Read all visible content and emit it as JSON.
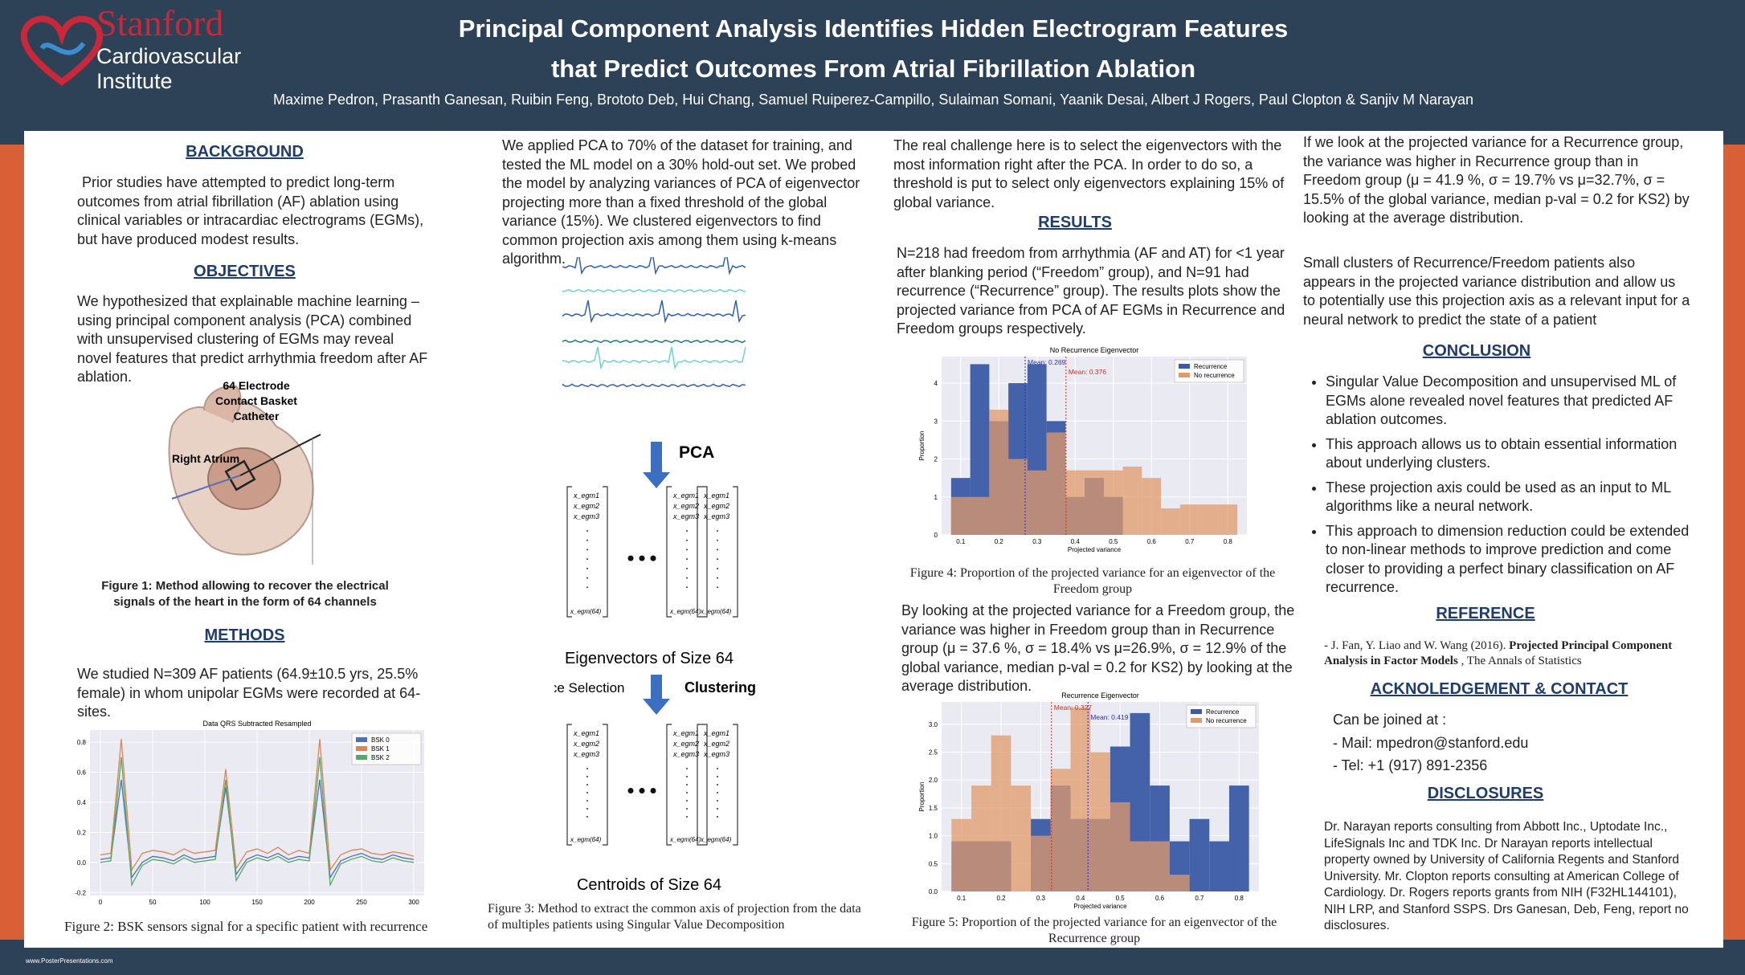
{
  "header": {
    "logo": [
      "Stanford",
      "Cardiovascular",
      "Institute"
    ],
    "title_line1": "Principal Component Analysis Identifies Hidden Electrogram Features",
    "title_line2": "that Predict Outcomes From Atrial Fibrillation Ablation",
    "authors": "Maxime Pedron, Prasanth Ganesan, Ruibin Feng, Brototo Deb, Hui Chang, Samuel Ruiperez-Campillo, Sulaiman Somani, Yaanik Desai, Albert J Rogers, Paul Clopton & Sanjiv M Narayan"
  },
  "column1": {
    "background_heading": "BACKGROUND",
    "background_text": "Prior studies have attempted to predict long-term outcomes from atrial fibrillation (AF) ablation using clinical variables or intracardiac electrograms (EGMs), but have produced modest results.",
    "objectives_heading": "OBJECTIVES",
    "objectives_text": "We hypothesized that explainable machine learning – using principal component analysis (PCA) combined with unsupervised clustering of EGMs may reveal novel features that predict arrhythmia freedom after AF ablation.",
    "figure1": {
      "catheter_label": [
        "64 Electrode",
        "Contact Basket",
        "Catheter"
      ],
      "atrium_label": "Right Atrium",
      "caption": "Figure 1: Method allowing to recover the electrical signals of the heart in the form of 64 channels"
    },
    "methods_heading": "METHODS",
    "methods_text": "We studied N=309 AF patients (64.9±10.5 yrs, 25.5% female) in whom unipolar EGMs were recorded at 64-sites.",
    "figure2": {
      "chart_data": {
        "type": "line",
        "title": "Data QRS Subtracted Resampled",
        "x": [
          0,
          10,
          20,
          30,
          40,
          50,
          60,
          70,
          80,
          90,
          100,
          110,
          120,
          130,
          140,
          150,
          160,
          170,
          180,
          190,
          200,
          210,
          220,
          230,
          240,
          250,
          260,
          270,
          280,
          290,
          300
        ],
        "xlim": [
          -10,
          310
        ],
        "xticks": [
          0,
          50,
          100,
          150,
          200,
          250,
          300
        ],
        "ylim": [
          -0.22,
          0.88
        ],
        "yticks": [
          -0.2,
          {
            "value": 0,
            "label": "0.0"
          },
          0.2,
          0.4,
          0.6,
          0.8
        ],
        "grid": true,
        "legend": "upper right",
        "series": [
          {
            "name": "BSK 0",
            "color": "#4c72b0",
            "values": [
              0.02,
              0.03,
              0.55,
              -0.1,
              0.0,
              0.04,
              0.03,
              0.01,
              0.05,
              0.02,
              0.03,
              0.04,
              0.5,
              -0.08,
              0.02,
              0.05,
              0.03,
              0.06,
              0.02,
              0.04,
              0.03,
              0.55,
              -0.1,
              0.01,
              0.04,
              0.06,
              0.03,
              0.02,
              0.05,
              0.03,
              0.02
            ]
          },
          {
            "name": "BSK 1",
            "color": "#dd8452",
            "values": [
              0.05,
              0.06,
              0.82,
              -0.05,
              0.06,
              0.08,
              0.07,
              0.05,
              0.09,
              0.06,
              0.07,
              0.08,
              0.62,
              -0.04,
              0.07,
              0.09,
              0.06,
              0.1,
              0.05,
              0.08,
              0.06,
              0.82,
              -0.05,
              0.05,
              0.08,
              0.09,
              0.06,
              0.05,
              0.07,
              0.06,
              0.04
            ]
          },
          {
            "name": "BSK 2",
            "color": "#55a868",
            "values": [
              0.0,
              0.01,
              0.7,
              -0.15,
              -0.02,
              0.02,
              0.01,
              -0.01,
              0.03,
              0.0,
              0.01,
              0.02,
              0.55,
              -0.12,
              0.0,
              0.03,
              0.01,
              0.04,
              0.0,
              0.02,
              0.01,
              0.7,
              -0.15,
              -0.01,
              0.02,
              0.04,
              0.01,
              0.0,
              0.03,
              0.01,
              0.0
            ]
          }
        ]
      },
      "caption": "Figure 2: BSK sensors signal for a specific patient with recurrence"
    }
  },
  "column2": {
    "text": "We applied PCA to 70% of the dataset for training, and tested the ML model on a 30% hold-out set. We probed the model by analyzing variances of PCA of eigenvector projecting more than a fixed threshold of the global variance (15%). We clustered eigenvectors to find common projection axis among them using k-means algorithm.",
    "pca_label": "PCA",
    "matrix_entries": [
      "x_egm1",
      "x_egm2",
      "x_egm3",
      "x_egm(64)"
    ],
    "eigenvectors_label": "Eigenvectors of Size 64",
    "variance_label": "Variance Selection",
    "clustering_label": "Clustering",
    "centroids_label": "Centroids of Size 64",
    "caption": "Figure 3: Method to extract the common axis of projection from the data of multiples patients using Singular Value Decomposition"
  },
  "column3": {
    "text1": "The real challenge here is to select the eigenvectors with the most information right after the PCA. In order to do so, a threshold is put to select only eigenvectors explaining 15% of global variance.",
    "results_heading": "RESULTS",
    "results_text": "N=218 had freedom from arrhythmia (AF and AT) for <1 year after blanking period (“Freedom” group), and N=91 had recurrence (“Recurrence” group). The results plots show the projected variance from PCA of AF EGMs in Recurrence and Freedom groups respectively.",
    "figure4": {
      "chart_data": {
        "type": "histogram",
        "title": "No Recurrence Eigenvector",
        "x_label": "Projected variance",
        "y_label": "Proportion",
        "bins": [
          0.075,
          0.125,
          0.175,
          0.225,
          0.275,
          0.325,
          0.375,
          0.425,
          0.475,
          0.525,
          0.575,
          0.625,
          0.675,
          0.725,
          0.775,
          0.825
        ],
        "xlim": [
          0.05,
          0.85
        ],
        "xticks": [
          0.1,
          0.2,
          0.3,
          0.4,
          0.5,
          0.6,
          0.7,
          0.8
        ],
        "ylim": [
          0,
          4.7
        ],
        "yticks": [
          0,
          1,
          2,
          3,
          4
        ],
        "grid": true,
        "legend": "upper right",
        "series": [
          {
            "name": "Recurrence",
            "color": "#3b5ba5",
            "values": [
              1.5,
              4.5,
              3,
              4,
              4.5,
              3,
              1,
              1.5,
              1,
              0,
              0,
              0,
              0,
              0,
              0
            ]
          },
          {
            "name": "No recurrence",
            "color": "#e09a6a",
            "values": [
              1,
              1,
              3.3,
              2,
              1.7,
              2.7,
              1.7,
              1.7,
              1.7,
              1.8,
              1.5,
              0.7,
              0.8,
              0.8,
              0.8
            ]
          }
        ],
        "means": [
          {
            "value": 0.269,
            "label": "Mean: 0.269",
            "color": "#2a2ad0"
          },
          {
            "value": 0.376,
            "label": "Mean: 0.376",
            "color": "#d03020"
          }
        ]
      },
      "caption": "Figure 4: Proportion of the projected variance for an eigenvector of the Freedom group"
    },
    "text2": "By looking at the projected variance for a Freedom group, the variance was higher in Freedom group than in Recurrence group (μ = 37.6 %, σ = 18.4% vs μ=26.9%, σ = 12.9%  of the global variance, median p-val = 0.2 for KS2) by looking at the average distribution.",
    "figure5": {
      "chart_data": {
        "type": "histogram",
        "title": "Recurrence Eigenvector",
        "x_label": "Projected variance",
        "y_label": "Proportion",
        "bins": [
          0.075,
          0.125,
          0.175,
          0.225,
          0.275,
          0.325,
          0.375,
          0.425,
          0.475,
          0.525,
          0.575,
          0.625,
          0.675,
          0.725,
          0.775,
          0.825
        ],
        "xlim": [
          0.05,
          0.85
        ],
        "xticks": [
          0.1,
          0.2,
          0.3,
          0.4,
          0.5,
          0.6,
          0.7,
          0.8
        ],
        "ylim": [
          0,
          3.4
        ],
        "yticks": [
          {
            "value": 0,
            "label": "0.0"
          },
          0.5,
          {
            "value": 1,
            "label": "1.0"
          },
          1.5,
          {
            "value": 2,
            "label": "2.0"
          },
          2.5,
          {
            "value": 3,
            "label": "3.0"
          }
        ],
        "grid": true,
        "legend": "upper right",
        "series": [
          {
            "name": "Recurrence",
            "color": "#3b5ba5",
            "values": [
              0.9,
              0.9,
              0.9,
              0,
              1.3,
              1.9,
              1.3,
              1.3,
              2.6,
              3.2,
              1.9,
              0.9,
              1.3,
              0.9,
              1.9
            ]
          },
          {
            "name": "No recurrence",
            "color": "#e09a6a",
            "values": [
              1.3,
              1.9,
              2.8,
              1.9,
              1.0,
              2.2,
              3.3,
              2.5,
              1.6,
              0.9,
              0.9,
              0.3,
              0,
              0,
              0
            ]
          }
        ],
        "means": [
          {
            "value": 0.327,
            "label": "Mean: 0.327",
            "color": "#d03020"
          },
          {
            "value": 0.419,
            "label": "Mean: 0.419",
            "color": "#2a2ad0"
          }
        ]
      },
      "caption": "Figure 5: Proportion of the projected variance for an eigenvector of the Recurrence group"
    }
  },
  "column4": {
    "text1": "If we look at the projected variance for a Recurrence group, the variance was higher in Recurrence group than in Freedom group (μ = 41.9 %, σ = 19.7% vs μ=32.7%, σ = 15.5% of the global variance, median p-val = 0.2 for KS2) by looking at the average distribution.",
    "text2": "Small clusters of Recurrence/Freedom patients also appears in the projected variance distribution and allow us to potentially use this projection axis as a relevant input for a neural network to predict the state of a patient",
    "conclusion_heading": "CONCLUSION",
    "conclusion_bullets": [
      "Singular Value Decomposition and unsupervised ML of EGMs alone revealed novel features that predicted AF ablation outcomes.",
      "This approach allows us to obtain essential information about underlying clusters.",
      "These projection axis could be used as an input to ML algorithms like a neural network.",
      "This approach to dimension reduction could be extended to non-linear methods to improve prediction and come closer to providing a perfect binary classification on AF recurrence."
    ],
    "reference_heading": "REFERENCE",
    "reference": {
      "authors": "- J. Fan, Y. Liao and W. Wang (2016). ",
      "title": "Projected Principal Component Analysis in Factor Models",
      "journal": " , The Annals of Statistics"
    },
    "ack_heading": "ACKNOLEDGEMENT & CONTACT",
    "contact_intro": "Can be joined at :",
    "contact_lines": [
      "-  Mail: mpedron@stanford.edu",
      "-  Tel: +1 (917) 891-2356"
    ],
    "disclosures_heading": "DISCLOSURES",
    "disclosures_text": "Dr. Narayan reports consulting from Abbott Inc., Uptodate Inc., LifeSignals Inc and TDK Inc. Dr Narayan reports intellectual property owned by University of California Regents and Stanford University. Mr. Clopton reports consulting at American College of Cardiology. Dr. Rogers reports grants from NIH (F32HL144101), NIH LRP, and Stanford SSPS. Drs Ganesan, Deb, Feng, report no disclosures."
  },
  "footer": "www.PosterPresentations.com"
}
